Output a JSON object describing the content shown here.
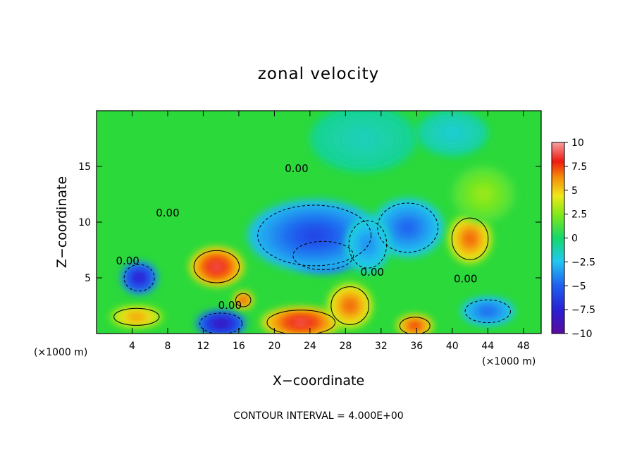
{
  "chart_data": {
    "type": "heatmap",
    "title": "zonal velocity",
    "xlabel": "X−coordinate",
    "ylabel": "Z−coordinate",
    "x_unit": "(×1000 m)",
    "z_unit": "(×1000 m)",
    "xlim": [
      0,
      50
    ],
    "ylim": [
      0,
      20
    ],
    "x_ticks": [
      "4",
      "8",
      "12",
      "16",
      "20",
      "24",
      "28",
      "32",
      "36",
      "40",
      "44",
      "48"
    ],
    "x_tick_values": [
      4,
      8,
      12,
      16,
      20,
      24,
      28,
      32,
      36,
      40,
      44,
      48
    ],
    "y_ticks": [
      "5",
      "10",
      "15"
    ],
    "y_tick_values": [
      5,
      10,
      15
    ],
    "colorbar": {
      "ticks": [
        "10",
        "7.5",
        "5",
        "2.5",
        "0",
        "−2.5",
        "−5",
        "−7.5",
        "−10"
      ],
      "tick_values": [
        10,
        7.5,
        5,
        2.5,
        0,
        -2.5,
        -5,
        -7.5,
        -10
      ],
      "range": [
        -10,
        10
      ]
    },
    "contour_labels": [
      {
        "text": "0.00",
        "x": 22.5,
        "z": 14.5
      },
      {
        "text": "0.00",
        "x": 8.0,
        "z": 10.5
      },
      {
        "text": "0.00",
        "x": 3.5,
        "z": 6.2
      },
      {
        "text": "0.00",
        "x": 15.0,
        "z": 2.2
      },
      {
        "text": "0.00",
        "x": 31.0,
        "z": 5.2
      },
      {
        "text": "0.00",
        "x": 41.5,
        "z": 4.6
      }
    ],
    "features": [
      {
        "value": -9,
        "x": 25.5,
        "z": 7.0,
        "rx": 4.0,
        "rz": 1.5
      },
      {
        "value": -6,
        "x": 24.5,
        "z": 8.8,
        "rx": 7.5,
        "rz": 3.2
      },
      {
        "value": -5,
        "x": 35.0,
        "z": 9.5,
        "rx": 4.0,
        "rz": 2.6
      },
      {
        "value": -4,
        "x": 30.5,
        "z": 8.0,
        "rx": 2.5,
        "rz": 2.5
      },
      {
        "value": -8,
        "x": 4.8,
        "z": 5.0,
        "rx": 2.0,
        "rz": 1.4
      },
      {
        "value": 9,
        "x": 13.5,
        "z": 6.0,
        "rx": 3.0,
        "rz": 1.7
      },
      {
        "value": 7,
        "x": 42.0,
        "z": 8.5,
        "rx": 2.4,
        "rz": 2.2
      },
      {
        "value": 9,
        "x": 23.0,
        "z": 1.0,
        "rx": 4.5,
        "rz": 1.3
      },
      {
        "value": 7,
        "x": 28.5,
        "z": 2.5,
        "rx": 2.5,
        "rz": 2.0
      },
      {
        "value": 8,
        "x": 35.8,
        "z": 0.7,
        "rx": 2.0,
        "rz": 0.9
      },
      {
        "value": -9,
        "x": 14.0,
        "z": 0.9,
        "rx": 2.8,
        "rz": 1.1
      },
      {
        "value": 8,
        "x": 16.5,
        "z": 3.0,
        "rx": 1.0,
        "rz": 0.7
      },
      {
        "value": 6,
        "x": 4.5,
        "z": 1.5,
        "rx": 3.0,
        "rz": 0.9
      },
      {
        "value": -5,
        "x": 44.0,
        "z": 2.0,
        "rx": 3.0,
        "rz": 1.2
      },
      {
        "value": 3,
        "x": 43.5,
        "z": 12.5,
        "rx": 3.5,
        "rz": 2.5
      },
      {
        "value": -2,
        "x": 40.0,
        "z": 18.0,
        "rx": 4.0,
        "rz": 2.0
      },
      {
        "value": -1.5,
        "x": 30.0,
        "z": 17.5,
        "rx": 6.0,
        "rz": 3.0
      }
    ]
  },
  "footer": "CONTOUR INTERVAL = 4.000E+00"
}
